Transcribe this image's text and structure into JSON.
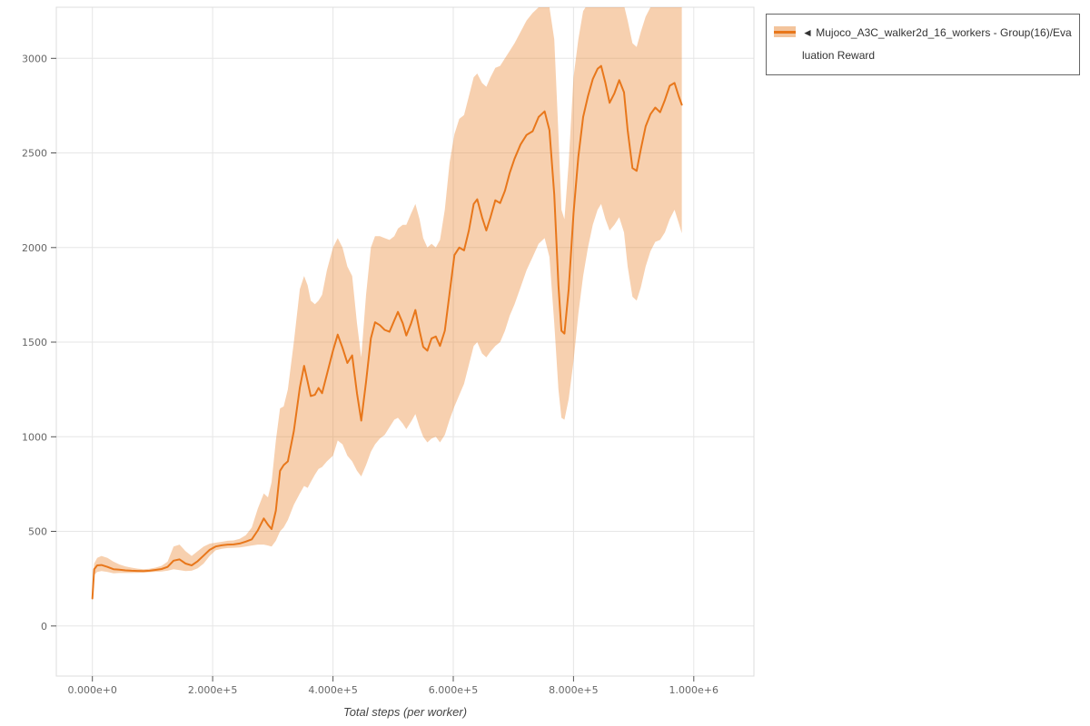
{
  "page": {
    "background": "#ffffff"
  },
  "legend": {
    "arrow": "◄",
    "label": "Mujoco_A3C_walker2d_16_workers - Group(16)/Evaluation Reward"
  },
  "chart_data": {
    "type": "line",
    "title": "",
    "xlabel": "Total steps (per worker)",
    "ylabel": "",
    "legend_position": "top-right",
    "grid": true,
    "xlim": [
      -60000,
      1100000
    ],
    "ylim": [
      -265,
      3270
    ],
    "x_tick_values": [
      0,
      200000,
      400000,
      600000,
      800000,
      1000000
    ],
    "x_tick_labels": [
      "0.000e+0",
      "2.000e+5",
      "4.000e+5",
      "6.000e+5",
      "8.000e+5",
      "1.000e+6"
    ],
    "y_tick_values": [
      0,
      500,
      1000,
      1500,
      2000,
      2500,
      3000
    ],
    "y_tick_labels": [
      "0",
      "500",
      "1000",
      "1500",
      "2000",
      "2500",
      "3000"
    ],
    "colors": {
      "line": "#e8771b",
      "band": "#e8771b",
      "band_opacity": 0.35,
      "grid": "#e6e6e6",
      "frame": "#dcdcdc",
      "tick": "#555555",
      "tick_label": "#666666"
    },
    "series": [
      {
        "name": "Mujoco_A3C_walker2d_16_workers - Group(16)/Evaluation Reward",
        "x": [
          0,
          3000,
          8000,
          15000,
          25000,
          35000,
          45000,
          55000,
          65000,
          75000,
          85000,
          95000,
          105000,
          115000,
          125000,
          135000,
          145000,
          155000,
          165000,
          175000,
          185000,
          195000,
          205000,
          215000,
          225000,
          235000,
          245000,
          255000,
          265000,
          275000,
          285000,
          292000,
          298000,
          305000,
          312000,
          318000,
          325000,
          335000,
          345000,
          352000,
          358000,
          363000,
          370000,
          376000,
          382000,
          390000,
          400000,
          408000,
          416000,
          424000,
          432000,
          440000,
          447000,
          455000,
          463000,
          470000,
          478000,
          486000,
          494000,
          502000,
          508000,
          516000,
          522000,
          530000,
          537000,
          544000,
          550000,
          557000,
          564000,
          571000,
          578000,
          586000,
          594000,
          602000,
          610000,
          618000,
          626000,
          634000,
          640000,
          648000,
          655000,
          662000,
          670000,
          678000,
          686000,
          694000,
          702000,
          712000,
          722000,
          732000,
          742000,
          752000,
          760000,
          768000,
          775000,
          780000,
          785000,
          792000,
          800000,
          808000,
          816000,
          824000,
          832000,
          840000,
          846000,
          853000,
          860000,
          868000,
          876000,
          884000,
          890000,
          898000,
          905000,
          912000,
          920000,
          928000,
          936000,
          944000,
          952000,
          960000,
          968000,
          975000,
          980000
        ],
        "mean": [
          145,
          300,
          320,
          322,
          312,
          300,
          297,
          294,
          292,
          291,
          290,
          292,
          296,
          301,
          312,
          345,
          352,
          330,
          320,
          342,
          372,
          402,
          420,
          426,
          430,
          431,
          436,
          446,
          458,
          505,
          568,
          535,
          512,
          610,
          820,
          850,
          870,
          1030,
          1260,
          1375,
          1290,
          1215,
          1222,
          1258,
          1230,
          1330,
          1455,
          1540,
          1470,
          1390,
          1430,
          1230,
          1085,
          1290,
          1520,
          1605,
          1590,
          1565,
          1555,
          1615,
          1660,
          1600,
          1535,
          1600,
          1670,
          1560,
          1475,
          1455,
          1520,
          1530,
          1480,
          1560,
          1760,
          1960,
          2000,
          1985,
          2090,
          2230,
          2255,
          2160,
          2090,
          2160,
          2250,
          2235,
          2300,
          2395,
          2470,
          2545,
          2595,
          2615,
          2690,
          2720,
          2620,
          2280,
          1800,
          1560,
          1545,
          1780,
          2180,
          2480,
          2690,
          2800,
          2890,
          2945,
          2960,
          2870,
          2765,
          2815,
          2885,
          2820,
          2620,
          2420,
          2405,
          2520,
          2640,
          2705,
          2740,
          2715,
          2780,
          2855,
          2870,
          2800,
          2755
        ],
        "lo": [
          130,
          270,
          285,
          290,
          285,
          278,
          280,
          280,
          280,
          281,
          282,
          284,
          286,
          288,
          292,
          300,
          295,
          290,
          292,
          305,
          330,
          370,
          400,
          408,
          412,
          413,
          415,
          420,
          425,
          430,
          430,
          425,
          420,
          450,
          500,
          520,
          560,
          640,
          700,
          740,
          730,
          760,
          800,
          830,
          840,
          870,
          900,
          980,
          960,
          900,
          870,
          820,
          790,
          850,
          920,
          960,
          990,
          1010,
          1050,
          1090,
          1100,
          1070,
          1040,
          1080,
          1120,
          1050,
          1000,
          970,
          990,
          1000,
          970,
          1010,
          1090,
          1160,
          1220,
          1280,
          1380,
          1480,
          1500,
          1440,
          1420,
          1450,
          1480,
          1500,
          1560,
          1640,
          1700,
          1790,
          1880,
          1950,
          2020,
          2050,
          1950,
          1600,
          1250,
          1100,
          1090,
          1200,
          1400,
          1650,
          1850,
          2000,
          2120,
          2200,
          2230,
          2150,
          2090,
          2120,
          2160,
          2080,
          1900,
          1740,
          1720,
          1790,
          1900,
          1980,
          2030,
          2040,
          2080,
          2150,
          2200,
          2130,
          2075
        ],
        "hi": [
          160,
          330,
          360,
          370,
          360,
          340,
          325,
          315,
          308,
          303,
          300,
          302,
          308,
          318,
          340,
          420,
          430,
          395,
          370,
          395,
          420,
          435,
          440,
          445,
          450,
          452,
          460,
          480,
          520,
          620,
          700,
          680,
          760,
          980,
          1150,
          1160,
          1250,
          1500,
          1780,
          1850,
          1800,
          1720,
          1700,
          1720,
          1750,
          1880,
          2000,
          2050,
          2000,
          1900,
          1850,
          1600,
          1420,
          1750,
          2000,
          2060,
          2060,
          2050,
          2040,
          2060,
          2100,
          2120,
          2120,
          2180,
          2230,
          2150,
          2050,
          2000,
          2020,
          2000,
          2040,
          2200,
          2450,
          2600,
          2680,
          2700,
          2800,
          2900,
          2920,
          2870,
          2850,
          2900,
          2950,
          2960,
          3000,
          3040,
          3080,
          3140,
          3200,
          3240,
          3270,
          3280,
          3270,
          3100,
          2600,
          2200,
          2150,
          2450,
          2900,
          3100,
          3250,
          3290,
          3300,
          3300,
          3300,
          3300,
          3280,
          3290,
          3300,
          3280,
          3200,
          3080,
          3060,
          3140,
          3220,
          3270,
          3290,
          3290,
          3300,
          3300,
          3300,
          3300,
          3290
        ]
      }
    ]
  }
}
